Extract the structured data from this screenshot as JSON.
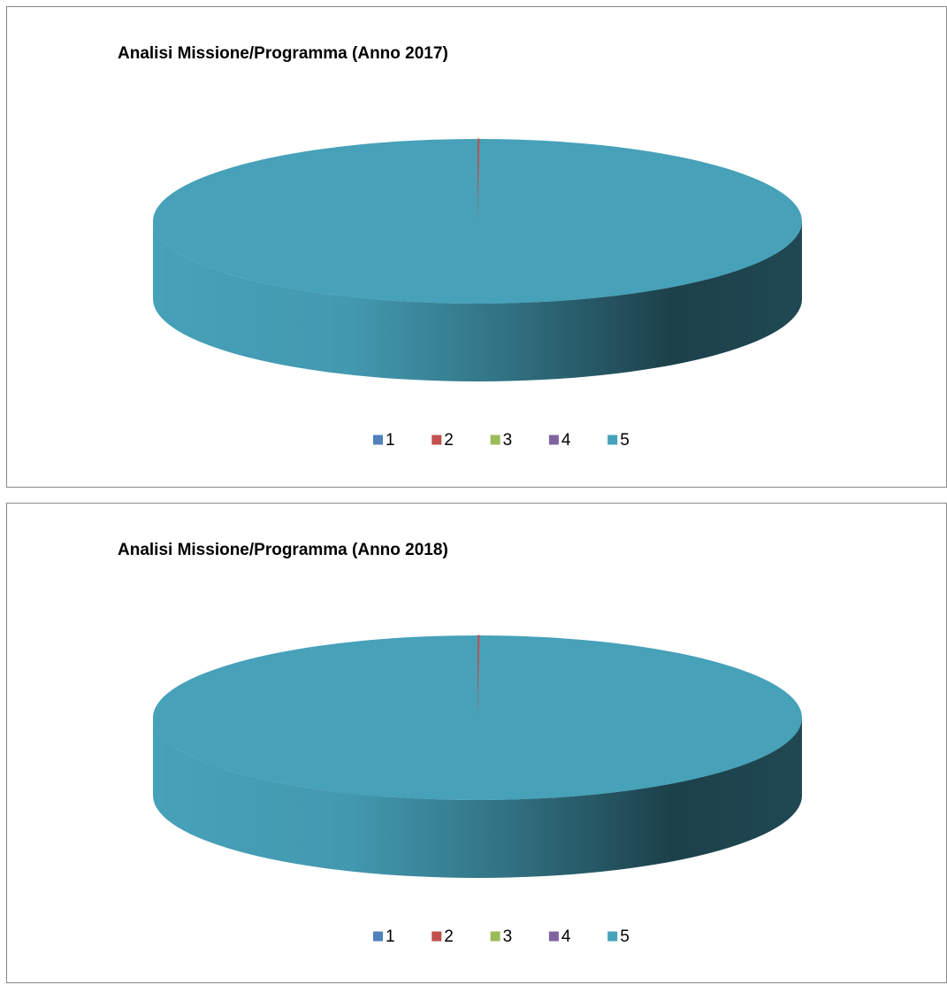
{
  "chart_data": [
    {
      "type": "pie",
      "title": "Analisi Missione/Programma (Anno 2017)",
      "categories": [
        "1",
        "2",
        "3",
        "4",
        "5"
      ],
      "values": [
        0,
        0.1,
        0,
        0,
        99.9
      ],
      "colors": [
        "#4f81bd",
        "#c0504d",
        "#9bbb59",
        "#8064a2",
        "#46a1b9"
      ],
      "legend": "bottom"
    },
    {
      "type": "pie",
      "title": "Analisi Missione/Programma (Anno 2018)",
      "categories": [
        "1",
        "2",
        "3",
        "4",
        "5"
      ],
      "values": [
        0,
        0.1,
        0,
        0,
        99.9
      ],
      "colors": [
        "#4f81bd",
        "#c0504d",
        "#9bbb59",
        "#8064a2",
        "#46a1b9"
      ],
      "legend": "bottom"
    }
  ]
}
